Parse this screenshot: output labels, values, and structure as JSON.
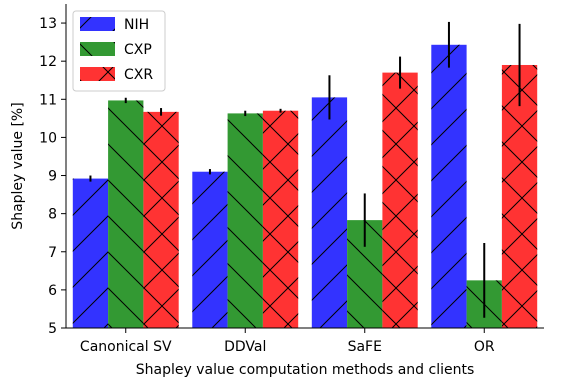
{
  "chart_data": {
    "type": "bar",
    "xlabel": "Shapley value computation methods and clients",
    "ylabel": "Shapley value [%]",
    "categories": [
      "Canonical SV",
      "DDVal",
      "SaFE",
      "OR"
    ],
    "ylim": [
      5,
      13.5
    ],
    "yticks": [
      5,
      6,
      7,
      8,
      9,
      10,
      11,
      12,
      13
    ],
    "legend_position": "top-left",
    "grid": false,
    "series": [
      {
        "name": "NIH",
        "color": "#3333ff",
        "hatch": "diagonal",
        "values": [
          8.92,
          9.1,
          11.05,
          12.43
        ],
        "errors": [
          0.08,
          0.07,
          0.58,
          0.6
        ]
      },
      {
        "name": "CXP",
        "color": "#339933",
        "hatch": "backslash",
        "values": [
          10.97,
          10.63,
          7.83,
          6.25
        ],
        "errors": [
          0.07,
          0.07,
          0.7,
          0.98
        ]
      },
      {
        "name": "CXR",
        "color": "#ff3333",
        "hatch": "cross",
        "values": [
          10.67,
          10.7,
          11.7,
          11.9
        ],
        "errors": [
          0.1,
          0.05,
          0.42,
          1.08
        ]
      }
    ]
  }
}
